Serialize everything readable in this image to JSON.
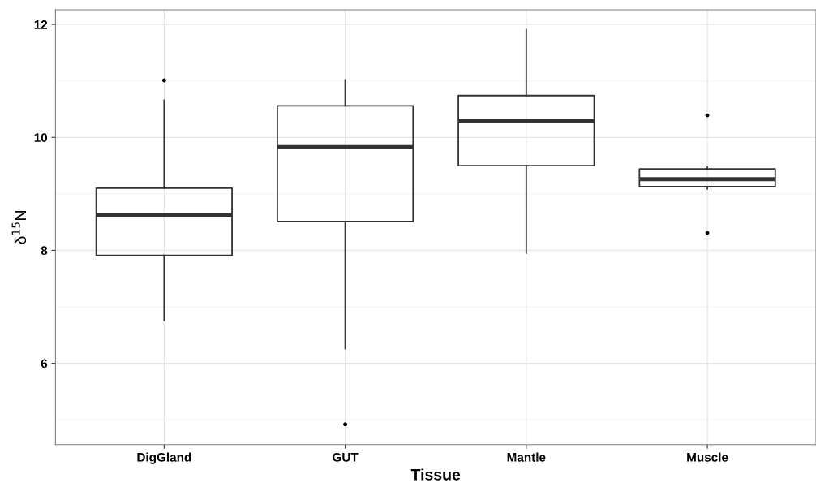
{
  "chart_data": {
    "type": "box",
    "xlabel": "Tissue",
    "ylabel": "δ$^{15}$N",
    "categories": [
      "DigGland",
      "GUT",
      "Mantle",
      "Muscle"
    ],
    "boxes": [
      {
        "low": 6.76,
        "q1": 7.91,
        "median": 8.63,
        "q3": 9.1,
        "high": 10.66,
        "outliers": [
          11.01
        ]
      },
      {
        "low": 6.26,
        "q1": 8.51,
        "median": 9.83,
        "q3": 10.56,
        "high": 11.02,
        "outliers": [
          4.92
        ]
      },
      {
        "low": 7.95,
        "q1": 9.5,
        "median": 10.29,
        "q3": 10.74,
        "high": 11.91
      },
      {
        "low": 9.09,
        "q1": 9.13,
        "median": 9.26,
        "q3": 9.44,
        "high": 9.47,
        "outliers": [
          10.39,
          8.31
        ]
      }
    ],
    "ylim": [
      4.56,
      12.26
    ],
    "yticks": [
      6,
      8,
      10,
      12
    ],
    "grid": true
  }
}
